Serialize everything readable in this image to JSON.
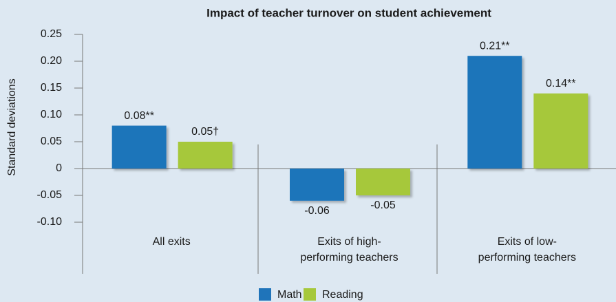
{
  "chart_data": {
    "type": "bar",
    "title": "Impact of teacher turnover on student achievement",
    "y_label": "Standard deviations",
    "categories": [
      [
        "All exits"
      ],
      [
        "Exits of high-",
        "performing teachers"
      ],
      [
        "Exits of low-",
        "performing teachers"
      ]
    ],
    "series": [
      {
        "name": "Math",
        "color": "#1f74ba",
        "values": [
          0.08,
          -0.06,
          0.21
        ],
        "value_labels": [
          "0.08**",
          "-0.06",
          "0.21**"
        ]
      },
      {
        "name": "Reading",
        "color": "#a6c83b",
        "values": [
          0.05,
          -0.05,
          0.14
        ],
        "value_labels": [
          "0.05†",
          "-0.05",
          "0.14**"
        ]
      }
    ],
    "ylim": [
      -0.1,
      0.25
    ],
    "yticks": [
      0.25,
      {
        "value": 0.2,
        "label": "0.20"
      },
      0.15,
      {
        "value": 0.1,
        "label": "0.10"
      },
      0.05,
      0,
      -0.05,
      {
        "value": -0.1,
        "label": "-0.10"
      }
    ],
    "legend": "bottom"
  }
}
